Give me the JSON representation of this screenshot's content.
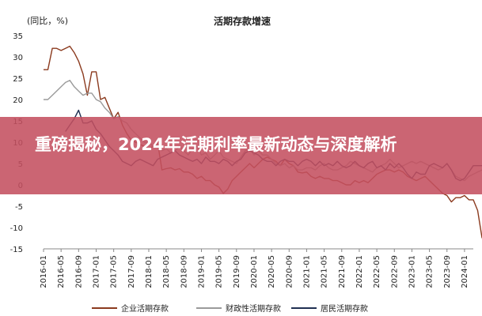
{
  "chart_data": {
    "type": "line",
    "title": "活期存款增速",
    "unit_label": "(同比，%)",
    "ylim": [
      -15,
      35
    ],
    "yticks": [
      -15,
      -10,
      -5,
      0,
      5,
      10,
      15,
      20,
      25,
      30,
      35
    ],
    "x_tick_labels": [
      "2016-01",
      "2016-05",
      "2016-09",
      "2017-01",
      "2017-05",
      "2017-09",
      "2018-01",
      "2018-05",
      "2018-09",
      "2019-01",
      "2019-05",
      "2019-09",
      "2020-01",
      "2020-05",
      "2020-09",
      "2021-01",
      "2021-05",
      "2021-09",
      "2022-01",
      "2022-05",
      "2022-09",
      "2023-01",
      "2023-05",
      "2023-09",
      "2024-01"
    ],
    "x_start": "2016-01",
    "x_end": "2024-03",
    "series": [
      {
        "name": "企业活期存款",
        "color": "#8B3A1E",
        "values": [
          27,
          27,
          32,
          32,
          31.5,
          32,
          32.5,
          31,
          29,
          26,
          21,
          26.5,
          26.5,
          20,
          20.5,
          18,
          15.5,
          17,
          14,
          12,
          10.5,
          10,
          9.5,
          9,
          8.5,
          9,
          10,
          3.5,
          3.8,
          4,
          3.5,
          3.8,
          3,
          3,
          2.5,
          1.5,
          2,
          1,
          1,
          0,
          -0.5,
          -2,
          -1,
          1,
          2,
          3,
          4,
          5,
          4,
          5,
          6,
          6.5,
          6,
          5.5,
          4.5,
          6,
          5,
          4.5,
          3,
          2.8,
          3,
          2,
          1.5,
          2,
          1.5,
          1.5,
          1,
          1,
          0.5,
          0,
          0,
          1,
          0.5,
          1,
          0.5,
          1.5,
          2.5,
          3,
          3.5,
          3.5,
          3,
          3.5,
          3,
          2,
          1.5,
          1,
          1.5,
          2,
          1,
          0,
          -1,
          -2,
          -2.5,
          -4,
          -3,
          -3,
          -2.5,
          -3.5,
          -3.5,
          -6,
          -12.5
        ]
      },
      {
        "name": "财政性活期存款",
        "color": "#9A9A9A",
        "values": [
          20,
          20,
          21,
          22,
          23,
          24,
          24.5,
          23,
          22,
          21,
          21.5,
          21.5,
          20,
          19.5,
          18,
          17,
          15.5,
          16,
          15,
          14.5,
          13,
          12,
          11,
          10,
          10,
          9,
          9.5,
          8,
          8.5,
          7.5,
          8,
          9,
          8,
          7,
          8.5,
          9,
          7,
          7.5,
          6,
          7,
          8,
          6.5,
          6,
          5.5,
          5,
          6.5,
          8,
          8.5,
          7,
          8,
          7,
          7,
          6,
          5,
          4.5,
          5,
          4,
          4.5,
          3.5,
          3.5,
          4,
          4,
          3.5,
          4.5,
          5,
          4,
          3.5,
          3.5,
          4,
          4.5,
          5.5,
          5,
          4.5,
          4,
          3.5,
          3,
          4,
          4.5,
          5,
          6,
          5,
          4,
          4.5,
          5,
          5.5,
          5,
          5.5,
          5,
          4.5,
          4,
          3.5,
          4,
          5,
          3.5,
          2,
          1.5,
          1,
          2,
          2.5,
          3,
          3.5
        ]
      },
      {
        "name": "居民活期存款",
        "color": "#1F2F52",
        "values": [
          null,
          null,
          null,
          null,
          null,
          12.5,
          14,
          15.5,
          17.5,
          14.5,
          14.5,
          15,
          13,
          12,
          10.5,
          9,
          8,
          7,
          5.5,
          5,
          4.5,
          5.5,
          6,
          5.5,
          5,
          4.5,
          6,
          6.5,
          7,
          7.5,
          8,
          7,
          6.5,
          6,
          5.5,
          6,
          5,
          6.5,
          5.5,
          5.5,
          5,
          6,
          5.5,
          4.5,
          5.5,
          6,
          7.5,
          8,
          7.5,
          7,
          6,
          5.5,
          5.5,
          4.5,
          5.5,
          6,
          5.5,
          5.5,
          4.5,
          5.5,
          6,
          5.5,
          4.5,
          5.5,
          4.5,
          5,
          4.5,
          5.5,
          4.5,
          4,
          4.5,
          5.5,
          4.5,
          4,
          5,
          5.5,
          4,
          4.5,
          3.5,
          5,
          4,
          5,
          4,
          2.5,
          1.5,
          3,
          2.5,
          2.5,
          4.5,
          5,
          4.5,
          4,
          5,
          3.5,
          1.5,
          1,
          1.5,
          3,
          4.5,
          4.5,
          4.5
        ]
      }
    ],
    "grid": false,
    "legend_position": "bottom"
  },
  "banner": {
    "text": "重磅揭秘，2024年活期利率最新动态与深度解析"
  }
}
